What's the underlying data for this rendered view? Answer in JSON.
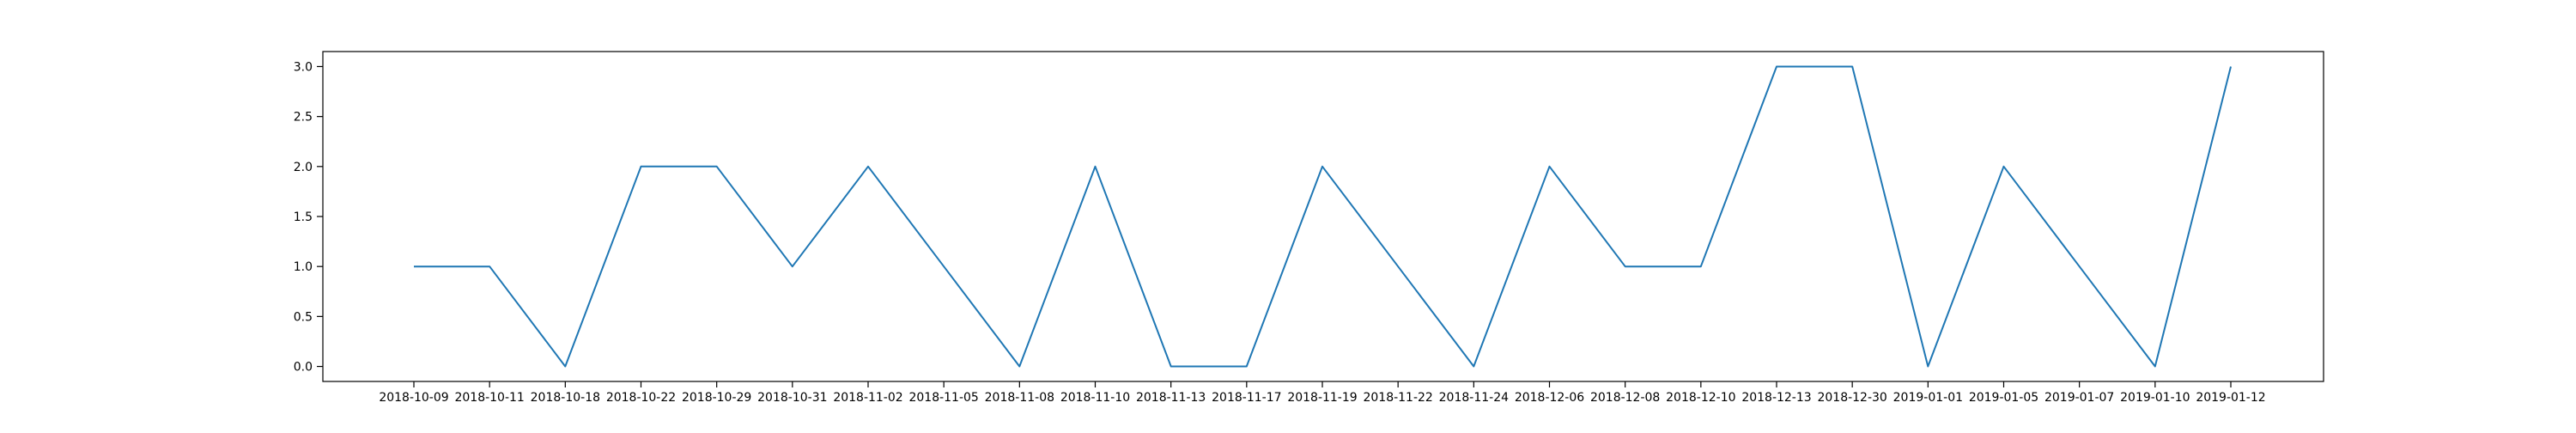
{
  "chart_data": {
    "type": "line",
    "title": "",
    "xlabel": "",
    "ylabel": "",
    "categories": [
      "2018-10-09",
      "2018-10-11",
      "2018-10-18",
      "2018-10-22",
      "2018-10-29",
      "2018-10-31",
      "2018-11-02",
      "2018-11-05",
      "2018-11-08",
      "2018-11-10",
      "2018-11-13",
      "2018-11-17",
      "2018-11-19",
      "2018-11-22",
      "2018-11-24",
      "2018-12-06",
      "2018-12-08",
      "2018-12-10",
      "2018-12-13",
      "2018-12-30",
      "2019-01-01",
      "2019-01-05",
      "2019-01-07",
      "2019-01-10",
      "2019-01-12"
    ],
    "series": [
      {
        "values": [
          1,
          1,
          0,
          2,
          2,
          1,
          2,
          1,
          0,
          2,
          0,
          0,
          2,
          1,
          0,
          2,
          1,
          1,
          3,
          3,
          0,
          2,
          1,
          0,
          3
        ],
        "color": "#1f77b4"
      }
    ],
    "ylim": [
      -0.15,
      3.15
    ],
    "yticks": [
      "0.0",
      "0.5",
      "1.0",
      "1.5",
      "2.0",
      "2.5",
      "3.0"
    ],
    "grid": false,
    "legend": "none"
  }
}
